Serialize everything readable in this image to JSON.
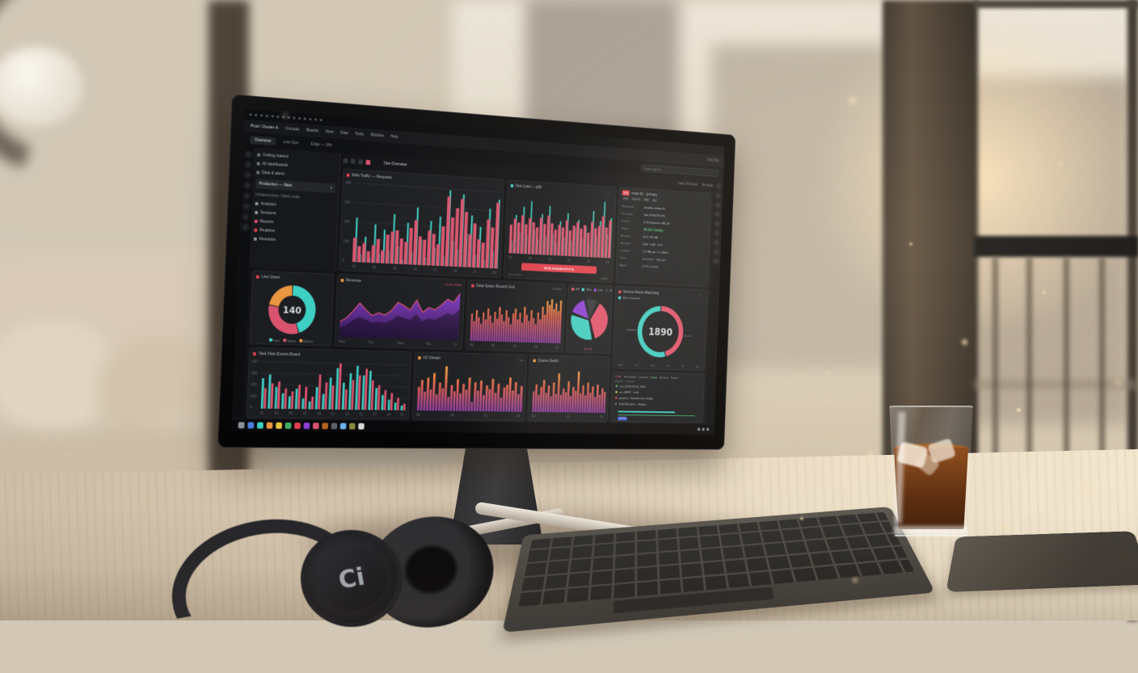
{
  "scene": {
    "headphones_logo": "Ci"
  },
  "dashboard": {
    "topbar": {
      "window_icons": [
        {
          "name": "apps"
        },
        {
          "name": "back"
        },
        {
          "name": "forward"
        },
        {
          "name": "reload"
        },
        {
          "name": "home"
        },
        {
          "name": "panels"
        },
        {
          "name": "graphs"
        },
        {
          "name": "alerts"
        },
        {
          "name": "history"
        },
        {
          "name": "users"
        },
        {
          "name": "search"
        },
        {
          "name": "settings"
        },
        {
          "name": "minimize"
        },
        {
          "name": "close"
        }
      ],
      "menu": [
        {
          "label": "Console"
        },
        {
          "label": "Boards"
        },
        {
          "label": "View"
        },
        {
          "label": "Data"
        },
        {
          "label": "Tools"
        },
        {
          "label": "Window"
        },
        {
          "label": "Help"
        }
      ],
      "status_right": "ONLINE",
      "breadcrumb": "Prod / Cluster-A",
      "tabs": [
        {
          "label": "Overview",
          "active": true
        },
        {
          "label": "Live Ops"
        },
        {
          "label": "Edge — 24h"
        }
      ],
      "search_placeholder": "Search panels…"
    },
    "sidebar": {
      "items": [
        {
          "label": "Getting started",
          "color": "#6a7079"
        },
        {
          "label": "All dashboards",
          "color": "#6a7079"
        },
        {
          "label": "Data & alerts",
          "color": "#6a7079"
        }
      ],
      "selector": {
        "label": "Production — Main",
        "caret": "▾"
      },
      "path": {
        "label": "Infrastructure / Main node"
      },
      "links": [
        {
          "label": "Analytics",
          "color": "#8a8f98"
        },
        {
          "label": "Sessions",
          "color": "#8a8f98"
        },
        {
          "label": "Reports",
          "color": "#d9536f"
        },
        {
          "label": "Realtime",
          "color": "#e0404d"
        },
        {
          "label": "Retention",
          "color": "#8a8f98"
        }
      ]
    },
    "viewbar": {
      "icons": [
        {
          "name": "layout",
          "color": "#32363c"
        },
        {
          "name": "filter",
          "color": "#32363c"
        },
        {
          "name": "refresh",
          "color": "#32363c"
        },
        {
          "name": "record",
          "color": "#d9536f"
        }
      ],
      "title": "Ops Overview",
      "time_range": "Last 24 hours",
      "refresh": "5m auto"
    },
    "rail_left_icons": [
      {
        "name": "home"
      },
      {
        "name": "boards"
      },
      {
        "name": "explore"
      },
      {
        "name": "alerts"
      },
      {
        "name": "users"
      },
      {
        "name": "plugins"
      },
      {
        "name": "settings"
      },
      {
        "name": "help"
      }
    ],
    "rail_right_icons": [
      {
        "name": "pin"
      },
      {
        "name": "layers"
      },
      {
        "name": "snapshot"
      },
      {
        "name": "export"
      },
      {
        "name": "annotate"
      },
      {
        "name": "zoom"
      },
      {
        "name": "clock"
      },
      {
        "name": "expand"
      },
      {
        "name": "more"
      }
    ],
    "panels": {
      "node_info": {
        "badge": "746",
        "title": "node-01 · primary",
        "tags": [
          "prod",
          "eu-west",
          "edge",
          "gw"
        ],
        "rows": [
          {
            "label": "Hostname",
            "value": "ariadne-cluster-01",
            "color": "#c3c7ce"
          },
          {
            "label": "First seen",
            "value": "Sun 09:42:33 UTC",
            "color": "#c3c7ce"
          },
          {
            "label": "Kernel",
            "value": "5.15.0-generic x86_64",
            "color": "#c3c7ce"
          },
          {
            "label": "Status",
            "value": "OK 200 · healthy",
            "color": "#58d98b",
            "bg": "rgba(63,174,98,.16)"
          },
          {
            "label": "Memory",
            "value": "62.4 / 96 GB",
            "color": "#c3c7ce"
          },
          {
            "label": "Avg load",
            "value": "0.64 · 0.82 · 0.71",
            "color": "#c3c7ce"
          },
          {
            "label": "Transfer",
            "value": "5.2 GB out / 1.1 GB in",
            "color": "#c3c7ce"
          },
          {
            "label": "Trace",
            "value": "us-west-2 · edge-gw",
            "color": "#9aa0a8"
          },
          {
            "label": "Agent",
            "value": "v2.41.0-stable",
            "color": "#9aa0a8"
          }
        ]
      },
      "ops_button": "RUN DIAGNOSTICS",
      "ops_footer_left": "auto-scale",
      "ops_footer_right": "details",
      "watchdog_legend": "Alerts baseline",
      "watchdog_footer": "Uptime 99.98%",
      "job_queue": {
        "tabs": [
          {
            "label": "LIVE",
            "color": "#e0536e"
          },
          {
            "label": "Scheduled",
            "color": "#8a8f98"
          },
          {
            "label": "Queued",
            "color": "#8a8f98"
          },
          {
            "label": "Done",
            "color": "#58d98b"
          },
          {
            "label": "Archive",
            "color": "#8a8f98"
          },
          {
            "label": "Export",
            "color": "#8a8f98"
          }
        ],
        "subtitle": "payroll — queue",
        "rows": [
          {
            "text": "run_2024-08-14_0412",
            "dot": "#3fae62"
          },
          {
            "text": "rev 44982 · hold",
            "dot": "#e8c23f"
          },
          {
            "text": "prod-eu · Maintenance Mode",
            "dot": "#e0404d"
          },
          {
            "text": "build 88-alpha · deploy",
            "dot": "#6a7079"
          }
        ],
        "progress_pct": 62,
        "progress2_pct": 84,
        "chip": "v2.7.4"
      }
    },
    "taskbar": {
      "dock": [
        {
          "name": "files",
          "color": "#8a8f98"
        },
        {
          "name": "browser",
          "color": "#4a7de0"
        },
        {
          "name": "terminal",
          "color": "#3ecfc4"
        },
        {
          "name": "mail",
          "color": "#e8963f"
        },
        {
          "name": "notes",
          "color": "#e8c23f"
        },
        {
          "name": "code",
          "color": "#3fae62"
        },
        {
          "name": "monitor",
          "color": "#e0404d"
        },
        {
          "name": "music",
          "color": "#8a3fd4"
        },
        {
          "name": "chat",
          "color": "#d9536f"
        },
        {
          "name": "photos",
          "color": "#b5651d"
        },
        {
          "name": "settings",
          "color": "#5a5e66"
        },
        {
          "name": "cloud",
          "color": "#6ab0e8"
        },
        {
          "name": "stats",
          "color": "#8a8a3f"
        },
        {
          "name": "store",
          "color": "#d8d8d8"
        }
      ],
      "tray": [
        {
          "name": "wifi"
        },
        {
          "name": "volume"
        },
        {
          "name": "battery"
        }
      ]
    },
    "accent_colors": {
      "teal": "#3ecfc4",
      "pink": "#d9536f",
      "red": "#e0404d",
      "orange": "#e8963f",
      "purple": "#8a3fd4",
      "green": "#3fae62",
      "yellow": "#e8c23f"
    }
  },
  "chart_data": [
    {
      "id": "traffic",
      "type": "dualbars",
      "title": "Web Traffic — Requests",
      "legend_position": "none",
      "colors": [
        "#3ecfc4",
        "#d9536f"
      ],
      "ylim": [
        0,
        100
      ],
      "yticks": [
        "60K",
        "45K",
        "30K",
        "15K",
        "0"
      ],
      "xticks": [
        "03",
        "06",
        "09",
        "12",
        "15",
        "18",
        "21",
        "24"
      ],
      "series": [
        {
          "name": "spikes",
          "values": [
            55,
            10,
            32,
            6,
            48,
            12,
            42,
            16,
            62,
            22,
            6,
            52,
            16,
            72,
            32,
            10,
            56,
            22,
            62,
            12,
            96,
            32,
            22,
            92,
            42,
            66,
            16,
            52,
            10,
            76,
            22,
            88
          ]
        },
        {
          "name": "requests",
          "values": [
            30,
            20,
            24,
            14,
            22,
            30,
            16,
            36,
            40,
            42,
            32,
            28,
            46,
            56,
            36,
            32,
            44,
            40,
            27,
            50,
            88,
            62,
            74,
            86,
            70,
            42,
            56,
            36,
            32,
            62,
            52,
            84
          ]
        }
      ]
    },
    {
      "id": "opsload",
      "type": "dualbars",
      "title": "Ops Load — p95",
      "legend_position": "none",
      "colors": [
        "#3ecfc4",
        "#d9536f"
      ],
      "ylim": [
        0,
        100
      ],
      "xticks": [
        "04",
        "08",
        "12",
        "16",
        "20",
        "24"
      ],
      "series": [
        {
          "name": "spikes",
          "values": [
            20,
            62,
            35,
            76,
            30,
            86,
            40,
            25,
            66,
            30,
            80,
            35,
            20,
            56,
            30,
            70,
            25,
            46,
            60,
            30,
            50,
            25,
            76,
            35,
            60,
            92,
            40,
            66
          ]
        },
        {
          "name": "load",
          "values": [
            46,
            56,
            50,
            62,
            48,
            58,
            52,
            44,
            60,
            50,
            64,
            52,
            42,
            50,
            46,
            58,
            42,
            50,
            56,
            46,
            52,
            40,
            58,
            48,
            52,
            68,
            50,
            62
          ]
        }
      ]
    },
    {
      "id": "revenue",
      "type": "linearea",
      "title": "Revenue",
      "delta_label": "+12.4% WoW",
      "line_color": "#e0536e",
      "fill_colors": [
        "#8a3fd4",
        "#4a2470"
      ],
      "ylim": [
        0,
        100
      ],
      "xticks": [
        "Mon",
        "Tue",
        "Wed",
        "Thu",
        "Fri"
      ],
      "series": [
        {
          "name": "this week",
          "values": [
            30,
            38,
            52,
            68,
            55,
            44,
            50,
            46,
            55,
            72,
            66,
            58,
            78,
            54,
            64,
            60,
            70,
            82,
            76,
            95
          ]
        },
        {
          "name": "last week",
          "values": [
            18,
            24,
            34,
            40,
            36,
            30,
            32,
            30,
            36,
            46,
            42,
            38,
            50,
            36,
            42,
            40,
            46,
            54,
            50,
            62
          ]
        }
      ]
    },
    {
      "id": "dataspace",
      "type": "gradarea",
      "title": "Data Space Record Grid",
      "corner_label": "24 GB/s",
      "gradient": [
        "#f6b03e",
        "#e0604e",
        "#8a3a9e"
      ],
      "ylim": [
        0,
        100
      ],
      "xticks": [
        "00",
        "06",
        "12",
        "18",
        "24"
      ],
      "values": [
        55,
        40,
        62,
        48,
        35,
        58,
        44,
        66,
        52,
        38,
        60,
        46,
        70,
        55,
        42,
        64,
        50,
        36,
        58,
        68,
        46,
        60,
        40,
        72,
        56,
        44,
        66,
        50,
        38,
        62,
        48,
        74,
        58,
        86,
        78,
        90,
        70,
        82,
        66,
        88
      ]
    },
    {
      "id": "liveusers",
      "type": "donut",
      "title": "Live Users",
      "center": "140",
      "thickness": 0.42,
      "segments": [
        {
          "label": "Direct",
          "color": "#3ecfc4",
          "value": 45
        },
        {
          "label": "Organic",
          "color": "#d9536f",
          "value": 33
        },
        {
          "label": "Referral",
          "color": "#e8963f",
          "value": 22
        }
      ]
    },
    {
      "id": "watchdog",
      "type": "donut",
      "title": "Service Alerts Watchdog",
      "center": "1890",
      "thickness": 0.2,
      "side_labels": [
        "baseline",
        "84.4%"
      ],
      "xticks": [
        "Mon",
        "Tue",
        "Wed",
        "Thu",
        "Fri",
        "Sat"
      ],
      "segments": [
        {
          "label": "Alerts",
          "color": "#e0536e",
          "value": 46
        },
        {
          "label": "Baseline",
          "color": "#3ecfc4",
          "value": 54
        }
      ]
    },
    {
      "id": "share",
      "type": "pie",
      "title": "Share",
      "footer": "Δ 2.9 k",
      "segments": [
        {
          "label": "API",
          "color": "#e0536e",
          "value": 38
        },
        {
          "label": "Web",
          "color": "#3ecfc4",
          "value": 34
        },
        {
          "label": "Jobs",
          "color": "#8a3fd4",
          "value": 16
        },
        {
          "label": "Other",
          "color": "#33363b",
          "value": 12
        }
      ]
    },
    {
      "id": "taskflow",
      "type": "gbars",
      "title": "Task Flow Events Board",
      "colors": [
        "#3ecfc4",
        "#e0536e"
      ],
      "ylim": [
        0,
        100
      ],
      "yticks": [
        "800",
        "600",
        "400",
        "200",
        "0"
      ],
      "xticks": [
        "01",
        "03",
        "05",
        "07",
        "09",
        "11",
        "13",
        "15",
        "17",
        "19",
        "21"
      ],
      "series": [
        {
          "name": "completed",
          "values": [
            62,
            70,
            45,
            32,
            26,
            42,
            22,
            16,
            46,
            32,
            66,
            86,
            56,
            76,
            92,
            72,
            82,
            46,
            32,
            22,
            16,
            10
          ]
        },
        {
          "name": "failed",
          "values": [
            42,
            52,
            56,
            42,
            36,
            50,
            46,
            26,
            72,
            56,
            50,
            96,
            42,
            62,
            72,
            86,
            62,
            52,
            42,
            36,
            26,
            14
          ]
        }
      ]
    },
    {
      "id": "iostream",
      "type": "gradarea",
      "title": "I/O Stream",
      "corner_label": "live",
      "gradient": [
        "#f6b03e",
        "#e0604e",
        "#8a3a9e"
      ],
      "ylim": [
        0,
        100
      ],
      "xticks": [
        "00",
        "08",
        "16",
        "24"
      ],
      "values": [
        50,
        65,
        40,
        70,
        45,
        80,
        35,
        60,
        48,
        95,
        30,
        55,
        42,
        68,
        38,
        58,
        46,
        72,
        20,
        62,
        44,
        66,
        35,
        56,
        48,
        70,
        40,
        60,
        30,
        52,
        58,
        74,
        46,
        64,
        38,
        56
      ]
    },
    {
      "id": "queuedepth",
      "type": "gradarea",
      "title": "Queue Depth",
      "corner_label": "∑ 24",
      "gradient": [
        "#f6b03e",
        "#e0604e",
        "#8a3a9e"
      ],
      "ylim": [
        0,
        100
      ],
      "xticks": [
        "00",
        "12",
        "24"
      ],
      "values": [
        45,
        60,
        38,
        55,
        70,
        42,
        58,
        35,
        65,
        40,
        85,
        38,
        52,
        44,
        68,
        36,
        56,
        48,
        90,
        42,
        60,
        38,
        66,
        44,
        58,
        35,
        62,
        40,
        54,
        46
      ]
    }
  ]
}
